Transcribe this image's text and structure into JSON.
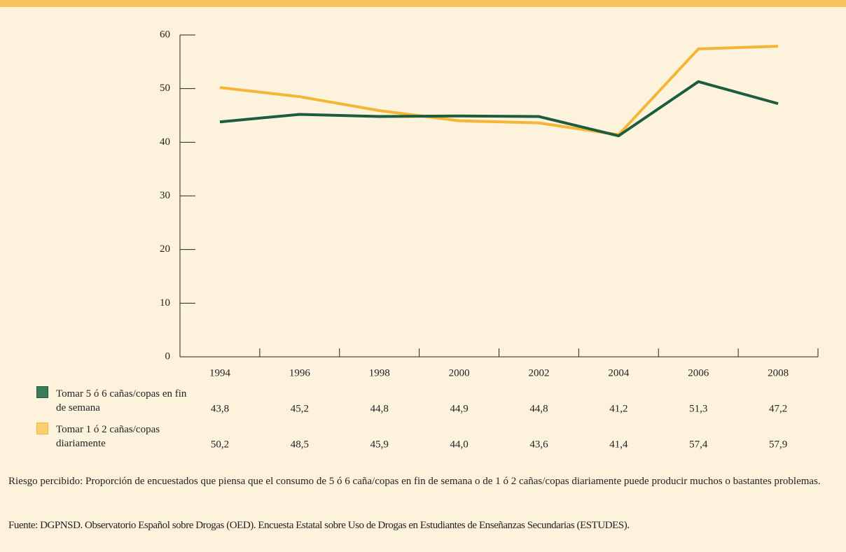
{
  "chart_data": {
    "type": "line",
    "categories": [
      "1994",
      "1996",
      "1998",
      "2000",
      "2002",
      "2004",
      "2006",
      "2008"
    ],
    "series": [
      {
        "name": "Tomar 5 ó 6 cañas/copas en fin de semana",
        "color": "#1d5c3d",
        "legend_color": "#3b7b5c",
        "values": [
          43.8,
          45.2,
          44.8,
          44.9,
          44.8,
          41.2,
          51.3,
          47.2
        ],
        "value_labels": [
          "43,8",
          "45,2",
          "44,8",
          "44,9",
          "44,8",
          "41,2",
          "51,3",
          "47,2"
        ]
      },
      {
        "name": "Tomar 1 ó 2 cañas/copas diariamente",
        "color": "#f5b535",
        "legend_color": "#f9cf72",
        "values": [
          50.2,
          48.5,
          45.9,
          44.0,
          43.6,
          41.4,
          57.4,
          57.9
        ],
        "value_labels": [
          "50,2",
          "48,5",
          "45,9",
          "44,0",
          "43,6",
          "41,4",
          "57,4",
          "57,9"
        ]
      }
    ],
    "ylim": [
      0,
      60
    ],
    "yticks": [
      0,
      10,
      20,
      30,
      40,
      50,
      60
    ],
    "note": "Riesgo percibido: Proporción de encuestados que piensa que el consumo de 5 ó 6 caña/copas en fin de semana o de 1 ó 2 cañas/copas diariamente puede producir muchos o bastantes problemas.",
    "source": "Fuente: DGPNSD. Observatorio Español sobre Drogas (OED). Encuesta Estatal sobre Uso de Drogas en Estudiantes de Enseñanzas Secundarias (ESTUDES)."
  }
}
